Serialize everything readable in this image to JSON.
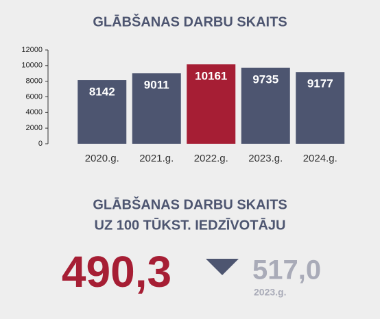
{
  "chart_data": {
    "type": "bar",
    "title": "GLĀBŠANAS DARBU SKAITS",
    "categories": [
      "2020.g.",
      "2021.g.",
      "2022.g.",
      "2023.g.",
      "2024.g."
    ],
    "values": [
      8142,
      9011,
      10161,
      9735,
      9177
    ],
    "colors": [
      "#4d5570",
      "#4d5570",
      "#a61e34",
      "#4d5570",
      "#4d5570"
    ],
    "ylim": [
      0,
      12000
    ],
    "yticks": [
      0,
      2000,
      4000,
      6000,
      8000,
      10000,
      12000
    ],
    "grid": false
  },
  "kpi": {
    "title_lines": [
      "GLĀBŠANAS DARBU SKAITS",
      "UZ 100 TŪKST. IEDZĪVOTĀJU"
    ],
    "value": "490,3",
    "previous_value": "517,0",
    "previous_label": "2023.g."
  }
}
